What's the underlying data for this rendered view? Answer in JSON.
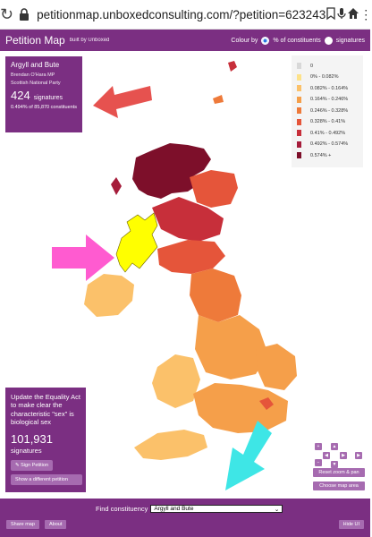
{
  "browser": {
    "url": "petitionmap.unboxedconsulting.com/?petition=623243"
  },
  "header": {
    "title": "Petition Map",
    "built_by": "built by Unboxed",
    "colour_by_label": "Colour by",
    "options": [
      "% of constituents",
      "signatures"
    ],
    "selected": "% of constituents"
  },
  "constituency": {
    "name": "Argyll and Bute",
    "mp": "Brendan O'Hara MP",
    "party": "Scottish National Party",
    "signatures": "424",
    "signatures_label": "signatures",
    "percent_text": "0.494% of 85,870 constituents"
  },
  "legend": [
    {
      "label": "0",
      "color": "#d8d8d8"
    },
    {
      "label": "0% - 0.082%",
      "color": "#fde28a"
    },
    {
      "label": "0.082% - 0.164%",
      "color": "#fbc16a"
    },
    {
      "label": "0.164% - 0.246%",
      "color": "#f59f4a"
    },
    {
      "label": "0.246% - 0.328%",
      "color": "#ee7a3a"
    },
    {
      "label": "0.328% - 0.41%",
      "color": "#e5553a"
    },
    {
      "label": "0.41% - 0.492%",
      "color": "#c72f3a"
    },
    {
      "label": "0.492% - 0.574%",
      "color": "#a51c3a"
    },
    {
      "label": "0.574% +",
      "color": "#7d0f2a"
    }
  ],
  "petition": {
    "title": "Update the Equality Act to make clear the characteristic \"sex\" is biological sex",
    "count": "101,931",
    "count_label": "signatures",
    "sign_button": "Sign Petition",
    "different_button": "Show a different petition"
  },
  "zoom_controls": {
    "reset_label": "Reset zoom & pan",
    "choose_label": "Choose map area"
  },
  "footer": {
    "find_label": "Find constituency",
    "find_value": "Argyll and Bute",
    "share_label": "Share map",
    "about_label": "About",
    "hide_label": "Hide UI"
  },
  "colors": {
    "brand": "#7b2f82",
    "selected_region": "#ffff00",
    "arrow_red": "#e6524f",
    "arrow_pink": "#ff5bd0",
    "arrow_cyan": "#3ee6e6"
  }
}
